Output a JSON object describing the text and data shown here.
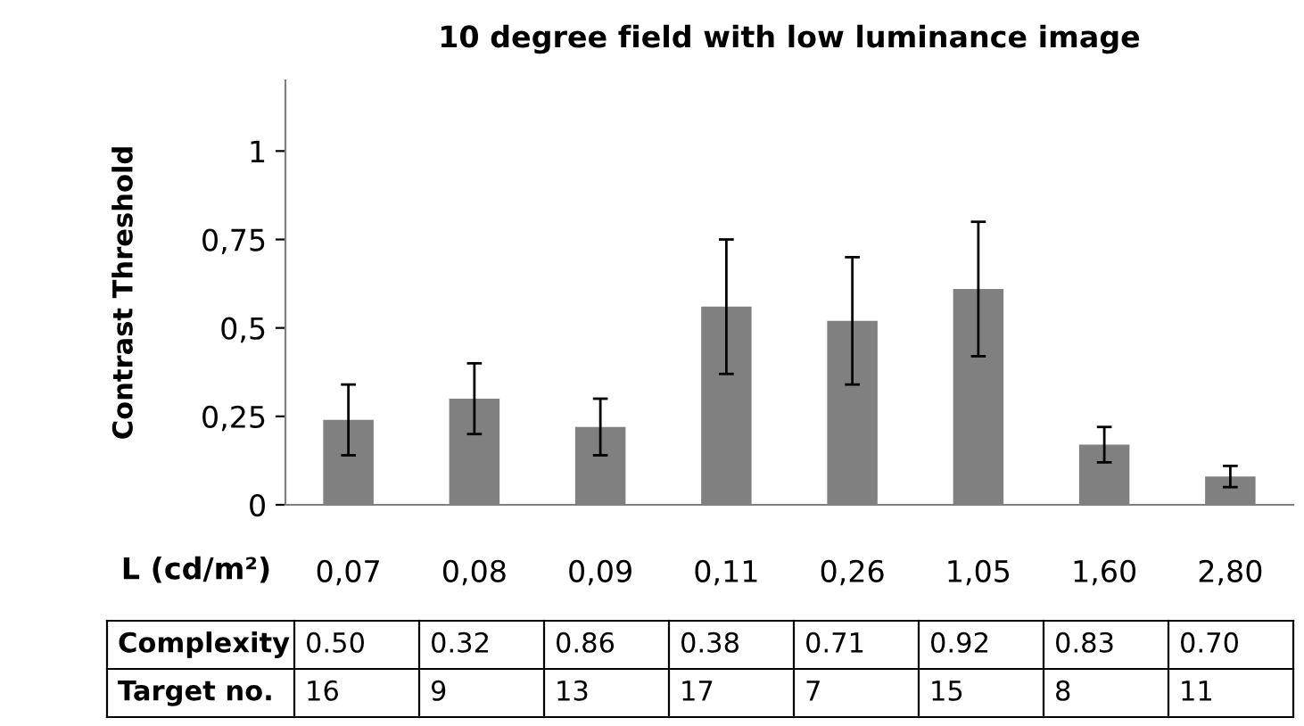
{
  "chart_data": {
    "type": "bar",
    "title": "10 degree field with low luminance image",
    "ylabel": "Contrast Threshold",
    "xlabel": "L (cd/m²)",
    "categories": [
      "0,07",
      "0,08",
      "0,09",
      "0,11",
      "0,26",
      "1,05",
      "1,60",
      "2,80"
    ],
    "values": [
      0.24,
      0.3,
      0.22,
      0.56,
      0.52,
      0.61,
      0.17,
      0.08
    ],
    "errors": [
      [
        0.14,
        0.34
      ],
      [
        0.2,
        0.4
      ],
      [
        0.14,
        0.3
      ],
      [
        0.37,
        0.75
      ],
      [
        0.34,
        0.7
      ],
      [
        0.42,
        0.8
      ],
      [
        0.12,
        0.22
      ],
      [
        0.05,
        0.11
      ]
    ],
    "color": "#808080",
    "ylim": [
      0,
      1.2
    ],
    "yticks": [
      0,
      {
        "value": 0.25,
        "label": "0,25"
      },
      {
        "value": 0.5,
        "label": "0,5"
      },
      {
        "value": 0.75,
        "label": "0,75"
      },
      1
    ],
    "grid": false,
    "legend": false,
    "annotations": [
      "Complexity",
      "0.50",
      "0.32",
      "0.86",
      "0.38",
      "0.71",
      "0.92",
      "0.83",
      "0.70",
      "Target no.",
      "16",
      "9",
      "13",
      "17",
      "7",
      "15",
      "8",
      "11"
    ]
  }
}
